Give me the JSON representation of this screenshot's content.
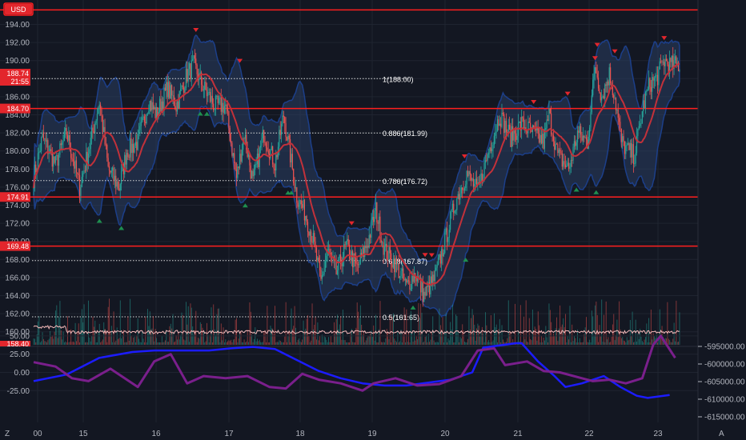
{
  "colors": {
    "background": "#131722",
    "grid": "#1f2430",
    "up_candle": "#26a69a",
    "down_candle": "#ef5350",
    "level_line": "#ff1f1f",
    "band_fill": "#2a3e63",
    "band_edge": "#1c3f8a",
    "ema": "#c2313a",
    "fib_line": "#d9d9d9",
    "osc_blue": "#1c1cff",
    "osc_purple": "#7a1f8c",
    "volume_line": "#f2b8b8"
  },
  "currency_tag": "USD",
  "price_tags": [
    "188.74",
    "21:55",
    "184.70",
    "174.91",
    "169.48",
    "158.40"
  ],
  "pane_labels": {
    "left_corner": "Z",
    "right_corner": "A"
  },
  "chart_data": [
    {
      "type": "candlestick",
      "ylim": [
        158.5,
        196.5
      ],
      "y_ticks": [
        "194.00",
        "192.00",
        "190.00",
        "188.00",
        "186.00",
        "184.00",
        "182.00",
        "180.00",
        "178.00",
        "176.00",
        "174.00",
        "172.00",
        "170.00",
        "168.00",
        "166.00",
        "164.00",
        "162.00",
        "160.00"
      ],
      "x_ticks": [
        "00",
        "15",
        "16",
        "17",
        "18",
        "19",
        "20",
        "21",
        "22",
        "23"
      ],
      "horizontal_levels": [
        195.6,
        184.7,
        174.91,
        169.48
      ],
      "fibonacci_levels": [
        {
          "label": "1(188.00)",
          "value": 188.0
        },
        {
          "label": "0.886(181.99)",
          "value": 181.99
        },
        {
          "label": "0.786(176.72)",
          "value": 176.72
        },
        {
          "label": "0.618(167.87)",
          "value": 167.87
        },
        {
          "label": "0.5(161.65)",
          "value": 161.65
        }
      ],
      "price_path": [
        [
          0,
          177.0
        ],
        [
          8,
          181.5
        ],
        [
          20,
          178.5
        ],
        [
          30,
          182.0
        ],
        [
          42,
          176.0
        ],
        [
          50,
          180.0
        ],
        [
          60,
          185.5
        ],
        [
          68,
          178.0
        ],
        [
          78,
          176.0
        ],
        [
          85,
          180.0
        ],
        [
          95,
          181.0
        ],
        [
          105,
          185.5
        ],
        [
          112,
          184.0
        ],
        [
          122,
          187.0
        ],
        [
          130,
          185.0
        ],
        [
          140,
          188.5
        ],
        [
          146,
          189.5
        ],
        [
          155,
          187.0
        ],
        [
          165,
          185.0
        ],
        [
          175,
          185.0
        ],
        [
          185,
          177.0
        ],
        [
          192,
          182.0
        ],
        [
          200,
          176.5
        ],
        [
          210,
          182.0
        ],
        [
          220,
          178.5
        ],
        [
          228,
          184.0
        ],
        [
          240,
          175.0
        ],
        [
          248,
          173.0
        ],
        [
          255,
          170.0
        ],
        [
          262,
          165.5
        ],
        [
          268,
          169.0
        ],
        [
          276,
          166.5
        ],
        [
          285,
          169.5
        ],
        [
          295,
          167.0
        ],
        [
          305,
          170.0
        ],
        [
          312,
          173.5
        ],
        [
          320,
          169.0
        ],
        [
          330,
          167.5
        ],
        [
          340,
          165.0
        ],
        [
          348,
          166.5
        ],
        [
          356,
          164.0
        ],
        [
          366,
          166.0
        ],
        [
          375,
          170.0
        ],
        [
          385,
          174.5
        ],
        [
          395,
          177.5
        ],
        [
          405,
          175.5
        ],
        [
          415,
          180.0
        ],
        [
          425,
          184.0
        ],
        [
          435,
          181.5
        ],
        [
          445,
          183.0
        ],
        [
          455,
          182.0
        ],
        [
          465,
          181.0
        ],
        [
          470,
          184.0
        ],
        [
          478,
          179.5
        ],
        [
          488,
          178.0
        ],
        [
          496,
          182.0
        ],
        [
          505,
          181.0
        ],
        [
          512,
          189.5
        ],
        [
          518,
          186.0
        ],
        [
          525,
          188.5
        ],
        [
          530,
          186.0
        ],
        [
          536,
          181.0
        ],
        [
          542,
          180.0
        ],
        [
          548,
          179.5
        ],
        [
          556,
          185.0
        ],
        [
          562,
          187.5
        ],
        [
          568,
          188.0
        ],
        [
          575,
          190.0
        ],
        [
          580,
          189.5
        ]
      ],
      "sell_signals": [
        148,
        188,
        290,
        357,
        363,
        393,
        456,
        487,
        512,
        514,
        530,
        575
      ],
      "buy_signals": [
        60,
        80,
        152,
        158,
        193,
        232,
        235,
        346,
        394,
        495,
        513
      ]
    },
    {
      "type": "line",
      "ylim": [
        -37,
        55
      ],
      "y_ticks": [
        "50.00",
        "25.00",
        "0.00",
        "-25.00"
      ],
      "right_axis_ticks": [
        "-595000.00",
        "-600000.00",
        "-605000.00",
        "-610000.00",
        "-615000.00"
      ],
      "series": [
        {
          "values": [
            [
              0,
              -12
            ],
            [
              30,
              -3
            ],
            [
              60,
              20
            ],
            [
              90,
              28
            ],
            [
              110,
              30
            ],
            [
              160,
              30
            ],
            [
              180,
              33
            ],
            [
              200,
              35
            ],
            [
              220,
              32
            ],
            [
              240,
              17
            ],
            [
              260,
              2
            ],
            [
              280,
              -8
            ],
            [
              300,
              -15
            ],
            [
              320,
              -18
            ],
            [
              340,
              -18
            ],
            [
              360,
              -14
            ],
            [
              380,
              -10
            ],
            [
              400,
              0
            ],
            [
              410,
              34
            ],
            [
              440,
              40
            ],
            [
              445,
              40
            ],
            [
              460,
              15
            ],
            [
              475,
              -5
            ],
            [
              485,
              -20
            ],
            [
              500,
              -15
            ],
            [
              520,
              -5
            ],
            [
              535,
              -20
            ],
            [
              550,
              -32
            ],
            [
              560,
              -35
            ],
            [
              580,
              -31
            ]
          ]
        },
        {
          "values": [
            [
              0,
              14
            ],
            [
              20,
              8
            ],
            [
              35,
              -8
            ],
            [
              50,
              -12
            ],
            [
              70,
              5
            ],
            [
              95,
              -20
            ],
            [
              110,
              15
            ],
            [
              125,
              25
            ],
            [
              140,
              -15
            ],
            [
              155,
              -5
            ],
            [
              175,
              -8
            ],
            [
              195,
              -5
            ],
            [
              215,
              -20
            ],
            [
              230,
              -22
            ],
            [
              245,
              -2
            ],
            [
              260,
              -10
            ],
            [
              280,
              -15
            ],
            [
              300,
              -25
            ],
            [
              310,
              -15
            ],
            [
              330,
              -8
            ],
            [
              350,
              -18
            ],
            [
              370,
              -16
            ],
            [
              390,
              -5
            ],
            [
              405,
              30
            ],
            [
              420,
              33
            ],
            [
              430,
              10
            ],
            [
              450,
              15
            ],
            [
              465,
              2
            ],
            [
              480,
              0
            ],
            [
              500,
              -8
            ],
            [
              510,
              -12
            ],
            [
              525,
              -10
            ],
            [
              540,
              -15
            ],
            [
              555,
              -8
            ],
            [
              565,
              38
            ],
            [
              572,
              50
            ],
            [
              585,
              20
            ]
          ]
        }
      ]
    }
  ]
}
